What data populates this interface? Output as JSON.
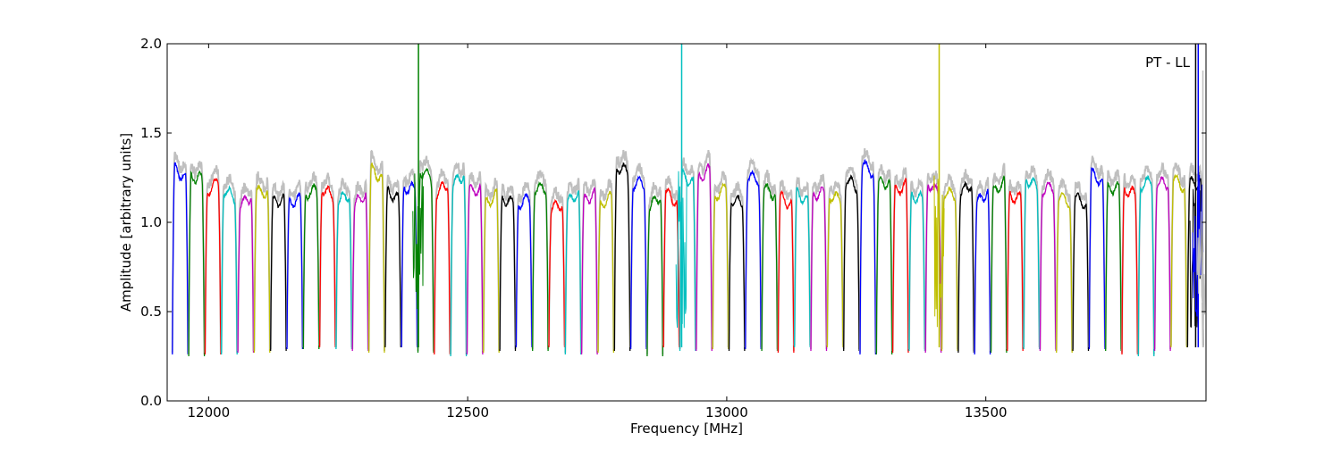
{
  "chart_data": {
    "type": "line",
    "annotation": "PT - LL",
    "xlabel": "Frequency [MHz]",
    "ylabel": "Amplitude [arbitrary units]",
    "xlim": [
      11920,
      13925
    ],
    "ylim": [
      0.0,
      2.0
    ],
    "xticks": [
      12000,
      12500,
      13000,
      13500
    ],
    "xtick_labels": [
      "12000",
      "12500",
      "13000",
      "13500"
    ],
    "yticks": [
      0.0,
      0.5,
      1.0,
      1.5,
      2.0
    ],
    "ytick_labels": [
      "0.0",
      "0.5",
      "1.0",
      "1.5",
      "2.0"
    ],
    "grid": false,
    "channel_spacing_mhz": 31.6,
    "channel_start_mhz": 11930,
    "channel_count": 63,
    "channel_colors": [
      "#0000ff",
      "#008000",
      "#ff0000",
      "#00bfbf",
      "#bf00bf",
      "#bfbf00",
      "#000000"
    ],
    "reference_color": "#bfbfbf",
    "channel_peak_levels": [
      1.35,
      1.33,
      1.28,
      1.24,
      1.2,
      1.25,
      1.2,
      1.2,
      1.25,
      1.25,
      1.22,
      1.21,
      1.35,
      1.23,
      1.27,
      1.35,
      1.27,
      1.32,
      1.26,
      1.21,
      1.2,
      1.2,
      1.27,
      1.17,
      1.22,
      1.22,
      1.2,
      1.38,
      1.3,
      1.2,
      1.22,
      1.32,
      1.35,
      1.25,
      1.2,
      1.33,
      1.25,
      1.2,
      1.22,
      1.24,
      1.22,
      1.3,
      1.38,
      1.3,
      1.27,
      1.22,
      1.27,
      1.24,
      1.27,
      1.22,
      1.28,
      1.22,
      1.3,
      1.27,
      1.21,
      1.2,
      1.33,
      1.27,
      1.25,
      1.3,
      1.3,
      1.3,
      1.3
    ],
    "channel_trough_levels": [
      0.26,
      0.25,
      0.26,
      0.26,
      0.27,
      0.27,
      0.28,
      0.29,
      0.29,
      0.3,
      0.29,
      0.28,
      0.27,
      0.3,
      0.3,
      0.27,
      0.26,
      0.25,
      0.26,
      0.27,
      0.28,
      0.3,
      0.28,
      0.3,
      0.26,
      0.26,
      0.27,
      0.28,
      0.29,
      0.25,
      0.3,
      0.28,
      0.28,
      0.29,
      0.28,
      0.29,
      0.28,
      0.27,
      0.3,
      0.28,
      0.3,
      0.28,
      0.26,
      0.26,
      0.27,
      0.28,
      0.27,
      0.28,
      0.27,
      0.26,
      0.27,
      0.28,
      0.29,
      0.28,
      0.27,
      0.28,
      0.29,
      0.28,
      0.26,
      0.25,
      0.28,
      0.3,
      0.3
    ],
    "spikes": [
      {
        "x": 12405,
        "ymax": 2.0,
        "color": "#008000"
      },
      {
        "x": 12913,
        "ymax": 2.0,
        "color": "#00bfbf"
      },
      {
        "x": 13410,
        "ymax": 2.0,
        "color": "#bfbf00"
      },
      {
        "x": 13905,
        "ymax": 2.0,
        "color": "#000000"
      },
      {
        "x": 13910,
        "ymax": 2.0,
        "color": "#0000ff"
      },
      {
        "x": 13919,
        "ymax": 1.85,
        "color": "#bfbfbf"
      }
    ]
  }
}
